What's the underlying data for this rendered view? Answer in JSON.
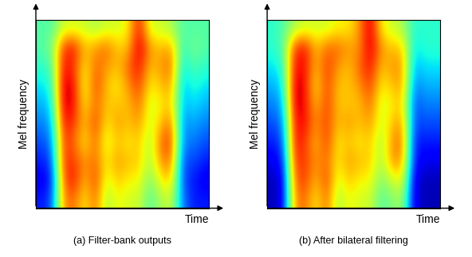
{
  "chart_data": [
    {
      "type": "heatmap",
      "caption": "(a) Filter-bank outputs",
      "x_label": "Time",
      "y_label": "Mel frequency",
      "tick_labels": false,
      "color": "jet",
      "value_range": [
        0,
        1
      ],
      "cells": [
        [
          0.45,
          0.45,
          0.6,
          0.6,
          0.6,
          0.55,
          0.6,
          0.6,
          0.65,
          0.9,
          0.6,
          0.6,
          0.55,
          0.45,
          0.45,
          0.45
        ],
        [
          0.45,
          0.5,
          0.85,
          0.9,
          0.7,
          0.75,
          0.8,
          0.7,
          0.7,
          0.95,
          0.75,
          0.7,
          0.75,
          0.4,
          0.5,
          0.45
        ],
        [
          0.4,
          0.45,
          0.9,
          0.85,
          0.65,
          0.8,
          0.75,
          0.7,
          0.8,
          0.9,
          0.7,
          0.75,
          0.8,
          0.35,
          0.45,
          0.4
        ],
        [
          0.35,
          0.4,
          0.95,
          0.9,
          0.6,
          0.85,
          0.7,
          0.65,
          0.75,
          0.85,
          0.65,
          0.7,
          0.75,
          0.3,
          0.4,
          0.35
        ],
        [
          0.3,
          0.35,
          0.95,
          0.9,
          0.65,
          0.8,
          0.7,
          0.7,
          0.7,
          0.8,
          0.6,
          0.65,
          0.7,
          0.3,
          0.35,
          0.3
        ],
        [
          0.25,
          0.3,
          0.9,
          0.85,
          0.7,
          0.85,
          0.65,
          0.75,
          0.7,
          0.75,
          0.6,
          0.7,
          0.8,
          0.25,
          0.3,
          0.25
        ],
        [
          0.2,
          0.25,
          0.85,
          0.8,
          0.65,
          0.8,
          0.6,
          0.7,
          0.65,
          0.7,
          0.55,
          0.8,
          0.85,
          0.25,
          0.25,
          0.2
        ],
        [
          0.15,
          0.2,
          0.85,
          0.85,
          0.75,
          0.8,
          0.65,
          0.75,
          0.7,
          0.7,
          0.55,
          0.75,
          0.8,
          0.2,
          0.2,
          0.15
        ],
        [
          0.1,
          0.15,
          0.8,
          0.9,
          0.7,
          0.85,
          0.6,
          0.7,
          0.65,
          0.65,
          0.5,
          0.65,
          0.7,
          0.2,
          0.15,
          0.1
        ],
        [
          0.15,
          0.2,
          0.75,
          0.8,
          0.65,
          0.8,
          0.55,
          0.65,
          0.6,
          0.6,
          0.45,
          0.55,
          0.6,
          0.25,
          0.15,
          0.15
        ]
      ]
    },
    {
      "type": "heatmap",
      "caption": "(b) After bilateral filtering",
      "x_label": "Time",
      "y_label": "Mel frequency",
      "tick_labels": false,
      "color": "jet",
      "value_range": [
        0,
        1
      ],
      "cells": [
        [
          0.4,
          0.45,
          0.55,
          0.6,
          0.6,
          0.6,
          0.65,
          0.65,
          0.75,
          0.95,
          0.65,
          0.6,
          0.55,
          0.4,
          0.4,
          0.4
        ],
        [
          0.4,
          0.45,
          0.85,
          0.9,
          0.7,
          0.8,
          0.8,
          0.75,
          0.75,
          0.95,
          0.75,
          0.7,
          0.7,
          0.35,
          0.4,
          0.4
        ],
        [
          0.35,
          0.4,
          0.9,
          0.9,
          0.7,
          0.85,
          0.75,
          0.7,
          0.8,
          0.9,
          0.7,
          0.75,
          0.75,
          0.3,
          0.35,
          0.35
        ],
        [
          0.3,
          0.35,
          0.95,
          0.9,
          0.65,
          0.85,
          0.7,
          0.7,
          0.75,
          0.85,
          0.65,
          0.7,
          0.75,
          0.25,
          0.3,
          0.3
        ],
        [
          0.25,
          0.3,
          0.95,
          0.9,
          0.7,
          0.85,
          0.7,
          0.7,
          0.7,
          0.8,
          0.6,
          0.65,
          0.7,
          0.2,
          0.25,
          0.25
        ],
        [
          0.2,
          0.25,
          0.9,
          0.9,
          0.75,
          0.85,
          0.7,
          0.75,
          0.7,
          0.75,
          0.6,
          0.7,
          0.75,
          0.2,
          0.2,
          0.2
        ],
        [
          0.15,
          0.2,
          0.9,
          0.85,
          0.7,
          0.85,
          0.65,
          0.7,
          0.65,
          0.7,
          0.55,
          0.75,
          0.8,
          0.15,
          0.15,
          0.15
        ],
        [
          0.1,
          0.15,
          0.85,
          0.85,
          0.75,
          0.8,
          0.65,
          0.75,
          0.7,
          0.7,
          0.55,
          0.75,
          0.75,
          0.15,
          0.1,
          0.1
        ],
        [
          0.05,
          0.1,
          0.8,
          0.85,
          0.7,
          0.85,
          0.6,
          0.7,
          0.65,
          0.65,
          0.5,
          0.6,
          0.65,
          0.1,
          0.05,
          0.05
        ],
        [
          0.05,
          0.1,
          0.75,
          0.8,
          0.65,
          0.8,
          0.55,
          0.65,
          0.6,
          0.6,
          0.45,
          0.5,
          0.55,
          0.1,
          0.05,
          0.05
        ]
      ]
    }
  ]
}
